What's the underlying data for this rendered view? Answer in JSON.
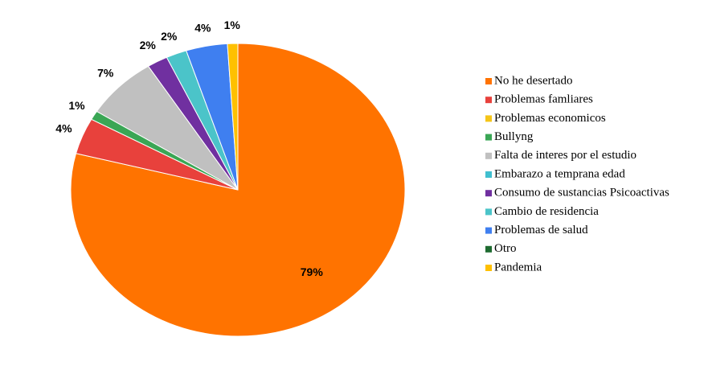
{
  "chart_data": {
    "type": "pie",
    "categories": [
      "No he desertado",
      "Problemas famliares",
      "Problemas economicos",
      "Bullyng",
      "Falta de interes por el estudio",
      "Embarazo a temprana edad",
      "Consumo de sustancias Psicoactivas",
      "Cambio de residencia",
      "Problemas de salud",
      "Otro",
      "Pandemia"
    ],
    "values": [
      79,
      4,
      0,
      1,
      7,
      0,
      2,
      2,
      4,
      0,
      1
    ],
    "value_labels": [
      "79%",
      "4%",
      null,
      "1%",
      "7%",
      null,
      "2%",
      "2%",
      "4%",
      null,
      "1%"
    ],
    "colors": [
      "#ff7300",
      "#e8413c",
      "#f5c518",
      "#3aa655",
      "#c0c0c0",
      "#40bfcf",
      "#7030a0",
      "#4bc4c9",
      "#3f7ff0",
      "#1e6b30",
      "#ffc000"
    ],
    "legend": "right"
  }
}
